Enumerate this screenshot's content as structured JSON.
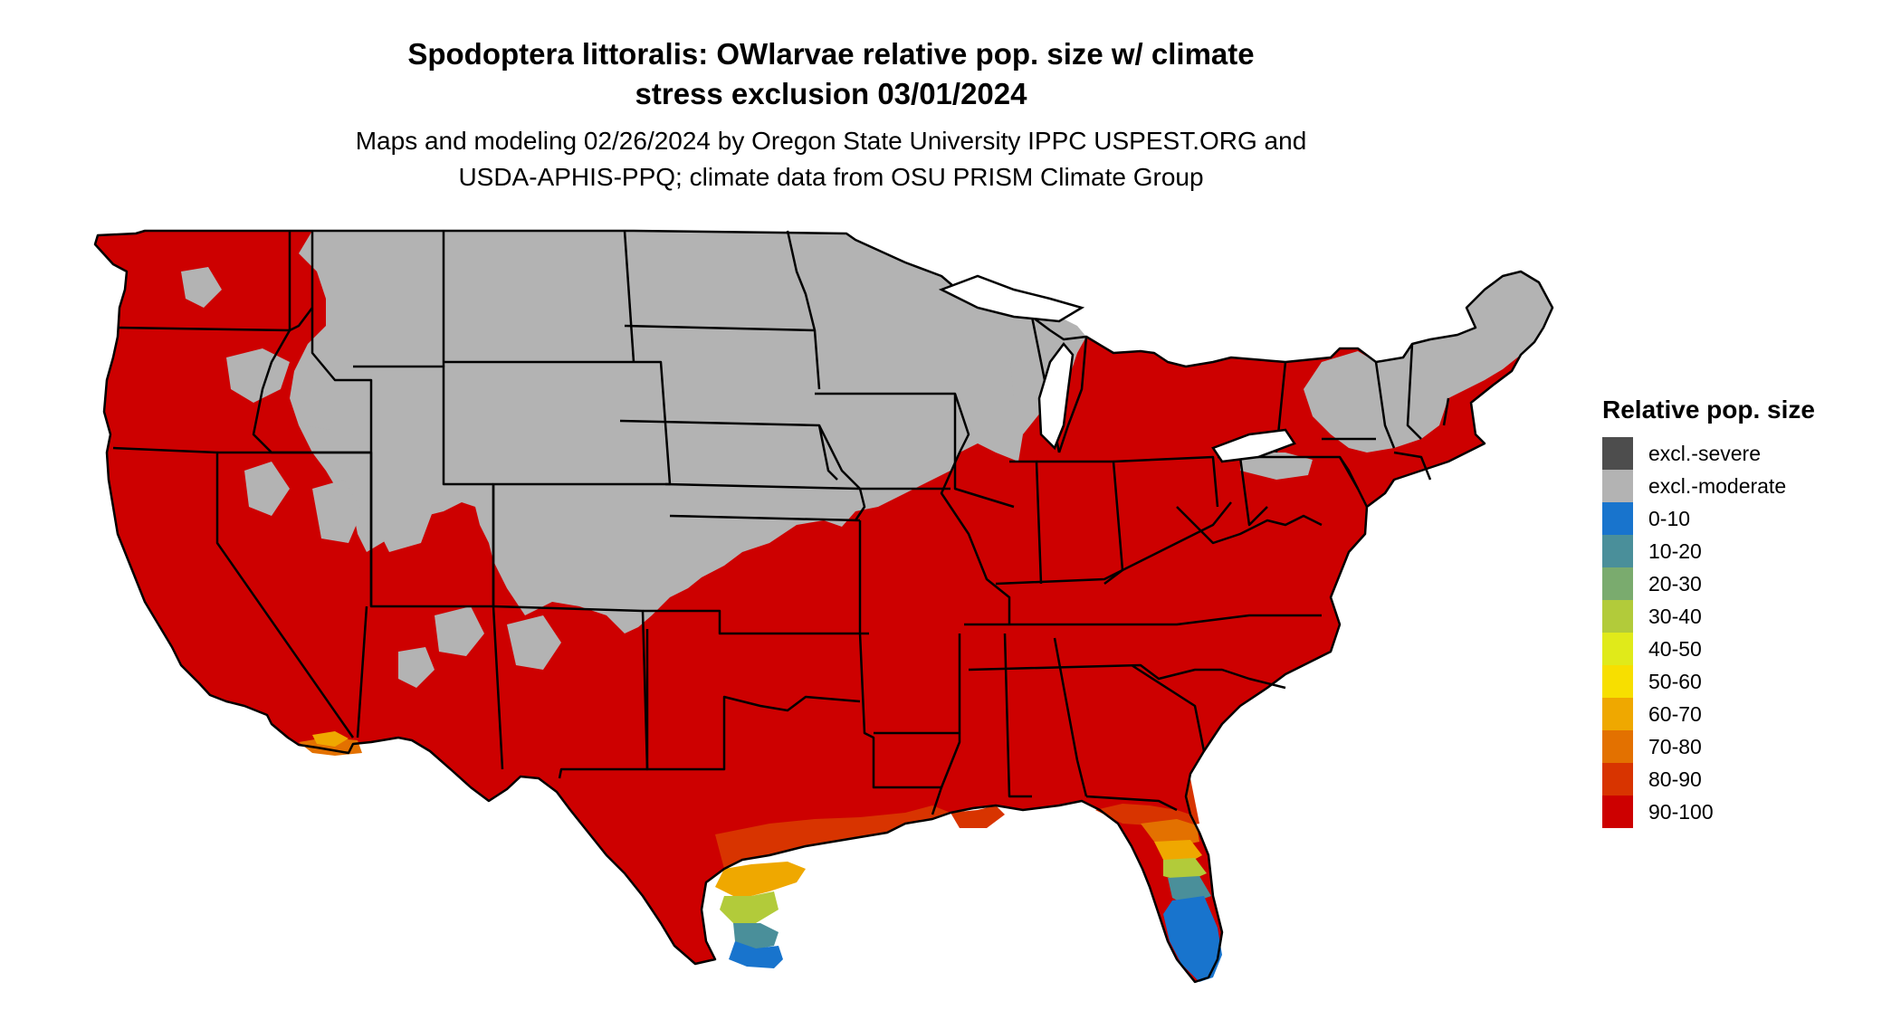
{
  "title": {
    "line1": "Spodoptera littoralis: OWlarvae relative pop. size w/ climate",
    "line2": "stress exclusion 03/01/2024"
  },
  "subtitle": {
    "line1": "Maps and modeling 02/26/2024 by Oregon State University IPPC USPEST.ORG and",
    "line2": "USDA-APHIS-PPQ; climate data from OSU PRISM Climate Group"
  },
  "legend": {
    "title": "Relative pop. size",
    "items": [
      {
        "label": "excl.-severe",
        "color": "#4d4d4d"
      },
      {
        "label": "excl.-moderate",
        "color": "#b3b3b3"
      },
      {
        "label": "0-10",
        "color": "#1874cd"
      },
      {
        "label": "10-20",
        "color": "#4a8f9a"
      },
      {
        "label": "20-30",
        "color": "#7aab6e"
      },
      {
        "label": "30-40",
        "color": "#b2cb3a"
      },
      {
        "label": "40-50",
        "color": "#e0ea1a"
      },
      {
        "label": "50-60",
        "color": "#f7df00"
      },
      {
        "label": "60-70",
        "color": "#efa800"
      },
      {
        "label": "70-80",
        "color": "#e37100"
      },
      {
        "label": "80-90",
        "color": "#d83400"
      },
      {
        "label": "90-100",
        "color": "#cd0000"
      }
    ]
  }
}
